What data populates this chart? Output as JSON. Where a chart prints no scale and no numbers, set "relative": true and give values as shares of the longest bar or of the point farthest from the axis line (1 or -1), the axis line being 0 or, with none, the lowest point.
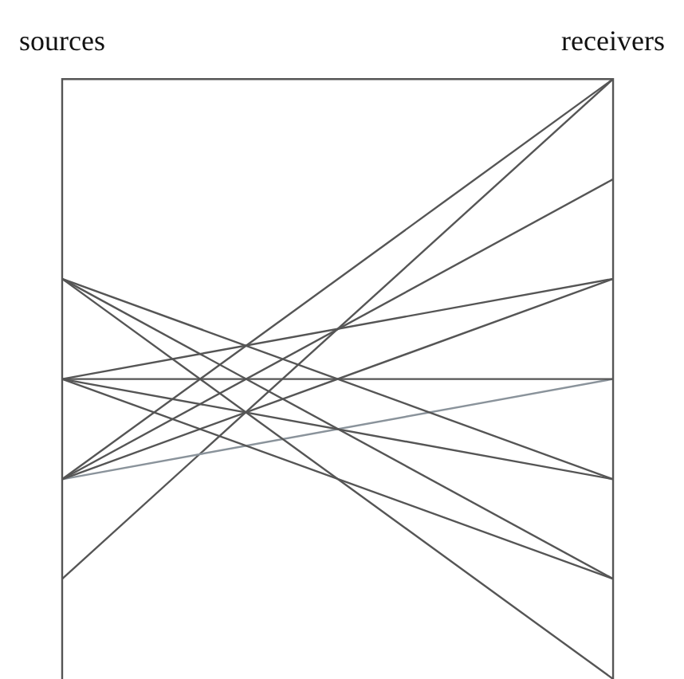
{
  "chart_data": {
    "type": "line",
    "categories": [
      "sources",
      "receivers"
    ],
    "relative": true,
    "marker": "none",
    "line_style": "solid",
    "series": [
      {
        "color": "#555555",
        "values": [
          0.667,
          0.333
        ]
      },
      {
        "color": "#555555",
        "values": [
          0.667,
          0.167
        ]
      },
      {
        "color": "#555555",
        "values": [
          0.667,
          0
        ]
      },
      {
        "color": "#555555",
        "values": [
          0.5,
          0.667
        ]
      },
      {
        "color": "#555555",
        "values": [
          0.5,
          0.5
        ]
      },
      {
        "color": "#555555",
        "values": [
          0.5,
          0.333
        ]
      },
      {
        "color": "#555555",
        "values": [
          0.5,
          0.167
        ]
      },
      {
        "color": "#555555",
        "values": [
          0.333,
          1
        ]
      },
      {
        "color": "#555555",
        "values": [
          0.333,
          0.833
        ]
      },
      {
        "color": "#555555",
        "values": [
          0.333,
          0.667
        ]
      },
      {
        "color": "#8a939b",
        "values": [
          0.333,
          0.5
        ]
      },
      {
        "color": "#555555",
        "values": [
          0.167,
          1
        ]
      }
    ]
  }
}
